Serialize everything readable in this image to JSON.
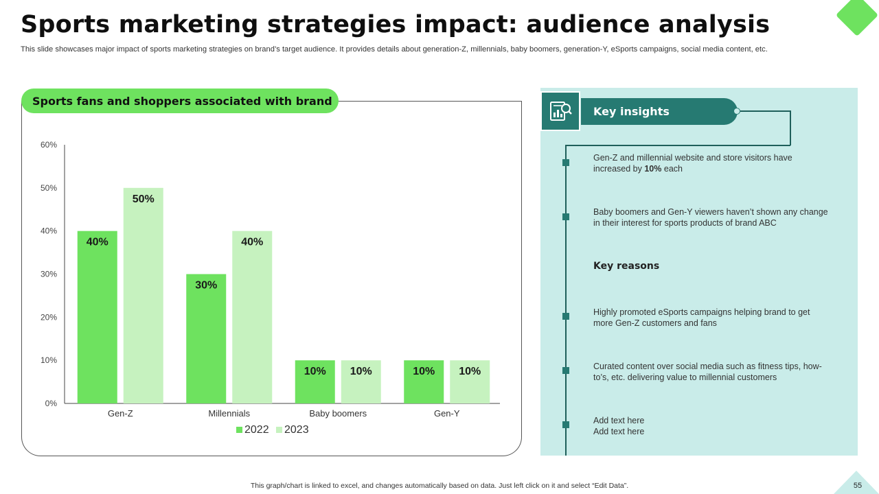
{
  "slide": {
    "title": "Sports marketing strategies impact: audience analysis",
    "subtitle": "This slide showcases major impact of sports marketing strategies on brand’s target audience. It provides details about generation-Z, millennials, baby boomers, generation-Y, eSports campaigns, social media content, etc.",
    "footer_note": "This graph/chart is linked to excel,  and changes automatically based on data. Just left click on it and select “Edit Data”.",
    "page_number": "55"
  },
  "chart_panel": {
    "heading": "Sports fans and shoppers associated with brand"
  },
  "chart_data": {
    "type": "bar",
    "title": "Sports fans and shoppers associated with brand",
    "categories": [
      "Gen-Z",
      "Millennials",
      "Baby boomers",
      "Gen-Y"
    ],
    "series": [
      {
        "name": "2022",
        "values": [
          40,
          30,
          10,
          10
        ],
        "color": "#6ee25f"
      },
      {
        "name": "2023",
        "values": [
          50,
          40,
          10,
          10
        ],
        "color": "#c6f2bf"
      }
    ],
    "ylim": [
      0,
      60
    ],
    "yticks": [
      0,
      10,
      20,
      30,
      40,
      50,
      60
    ],
    "value_suffix": "%",
    "xlabel": "",
    "ylabel": "",
    "legend": "bottom-center",
    "grid": false
  },
  "insights": {
    "heading": "Key insights",
    "icon": "report-analysis-icon",
    "items": [
      {
        "before": "Gen-Z and millennial website and store visitors have increased by ",
        "bold": "10%",
        "after": " each"
      },
      {
        "before": "Baby boomers and Gen-Y viewers  haven’t  shown any change in their interest for sports products of brand ABC",
        "bold": "",
        "after": ""
      }
    ],
    "reasons_heading": "Key reasons",
    "reasons": [
      "Highly promoted eSports campaigns helping brand to get more Gen-Z customers and fans",
      "Curated content over social media such as fitness tips, how-to’s, etc. delivering value  to millennial customers",
      "Add text here\nAdd text here"
    ]
  },
  "colors": {
    "accent_green": "#6ee25f",
    "light_green": "#c6f2bf",
    "teal": "#267a72",
    "panel_teal": "#c9ece9"
  }
}
